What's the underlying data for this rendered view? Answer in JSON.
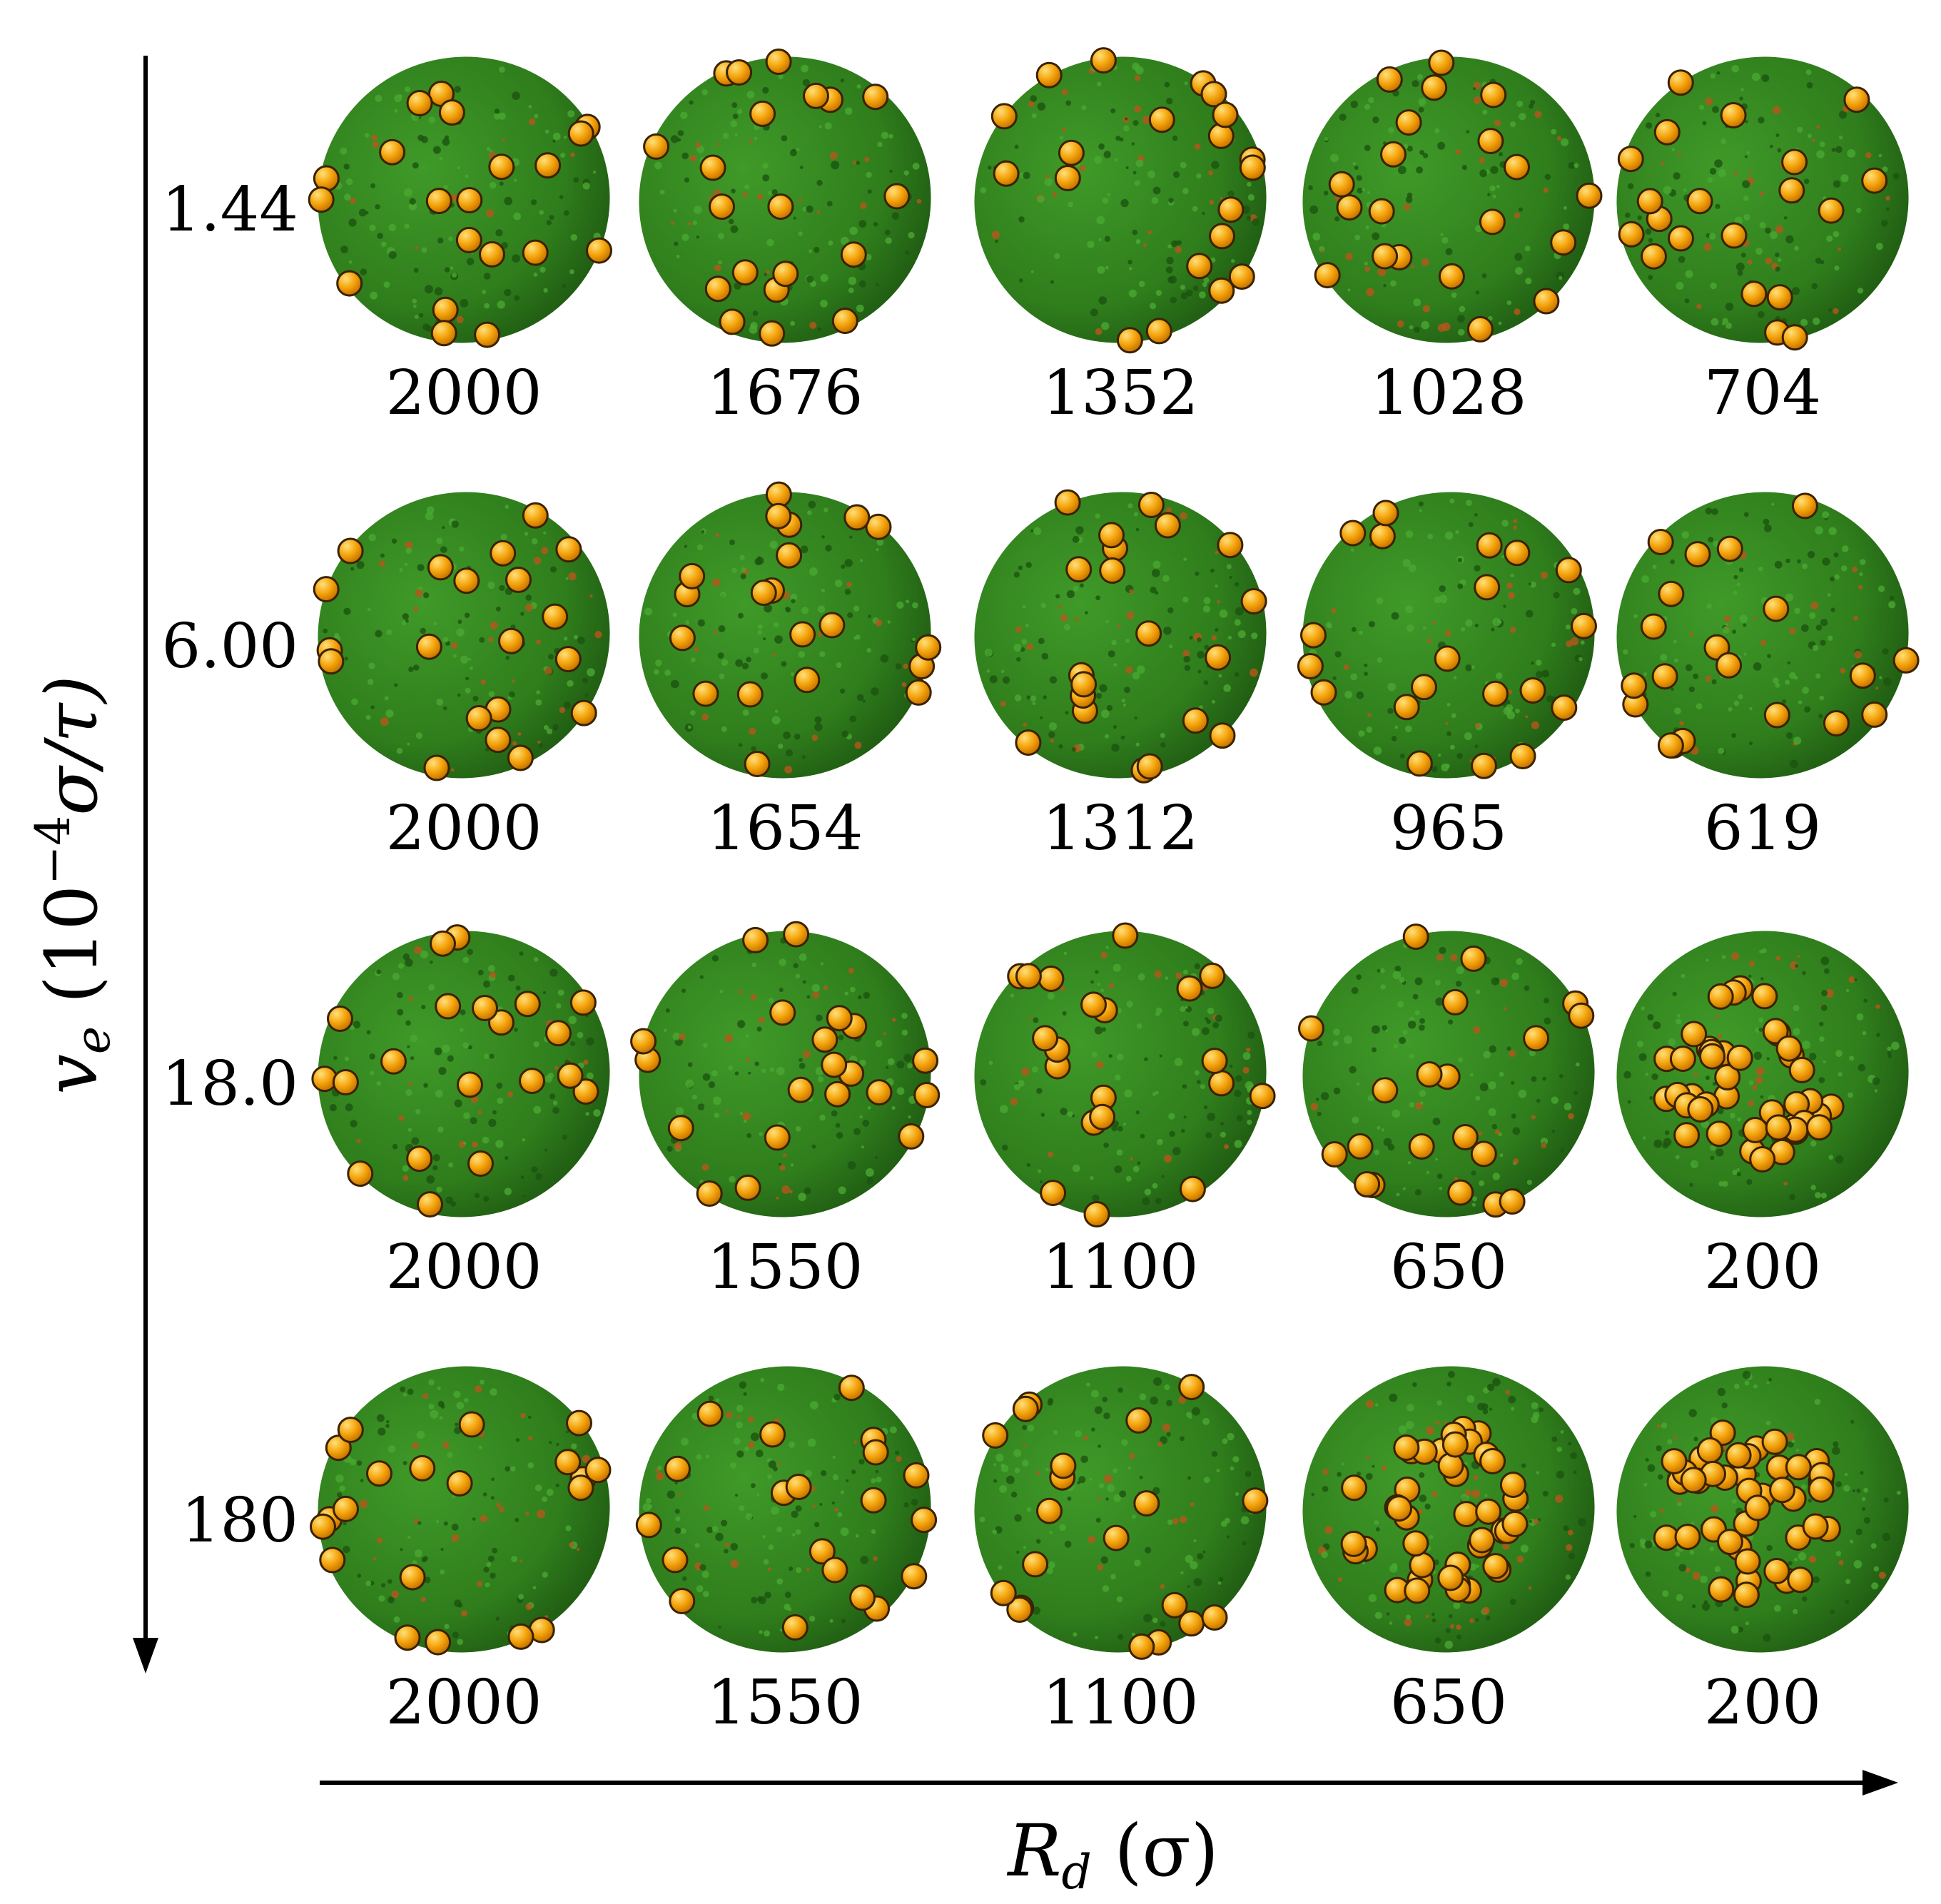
{
  "axes": {
    "y": {
      "symbol": "v",
      "subscript": "e",
      "units_prefix": " (10",
      "exponent": "−4",
      "units_suffix": "σ/τ)",
      "values": [
        "1.44",
        "6.00",
        "18.0",
        "180"
      ]
    },
    "x": {
      "symbol": "R",
      "subscript": "d",
      "units": " (σ)"
    }
  },
  "rows": [
    {
      "ve": "1.44",
      "rd": [
        "2000",
        "1676",
        "1352",
        "1028",
        "704"
      ]
    },
    {
      "ve": "6.00",
      "rd": [
        "2000",
        "1654",
        "1312",
        "965",
        "619"
      ]
    },
    {
      "ve": "18.0",
      "rd": [
        "2000",
        "1550",
        "1100",
        "650",
        "200"
      ]
    },
    {
      "ve": "180",
      "rd": [
        "2000",
        "1550",
        "1100",
        "650",
        "200"
      ]
    }
  ],
  "colors": {
    "droplet_green": "#2f7d1c",
    "droplet_dark": "#1f5a12",
    "particle_orange": "#f5a40c",
    "particle_edge": "#3a2200"
  }
}
